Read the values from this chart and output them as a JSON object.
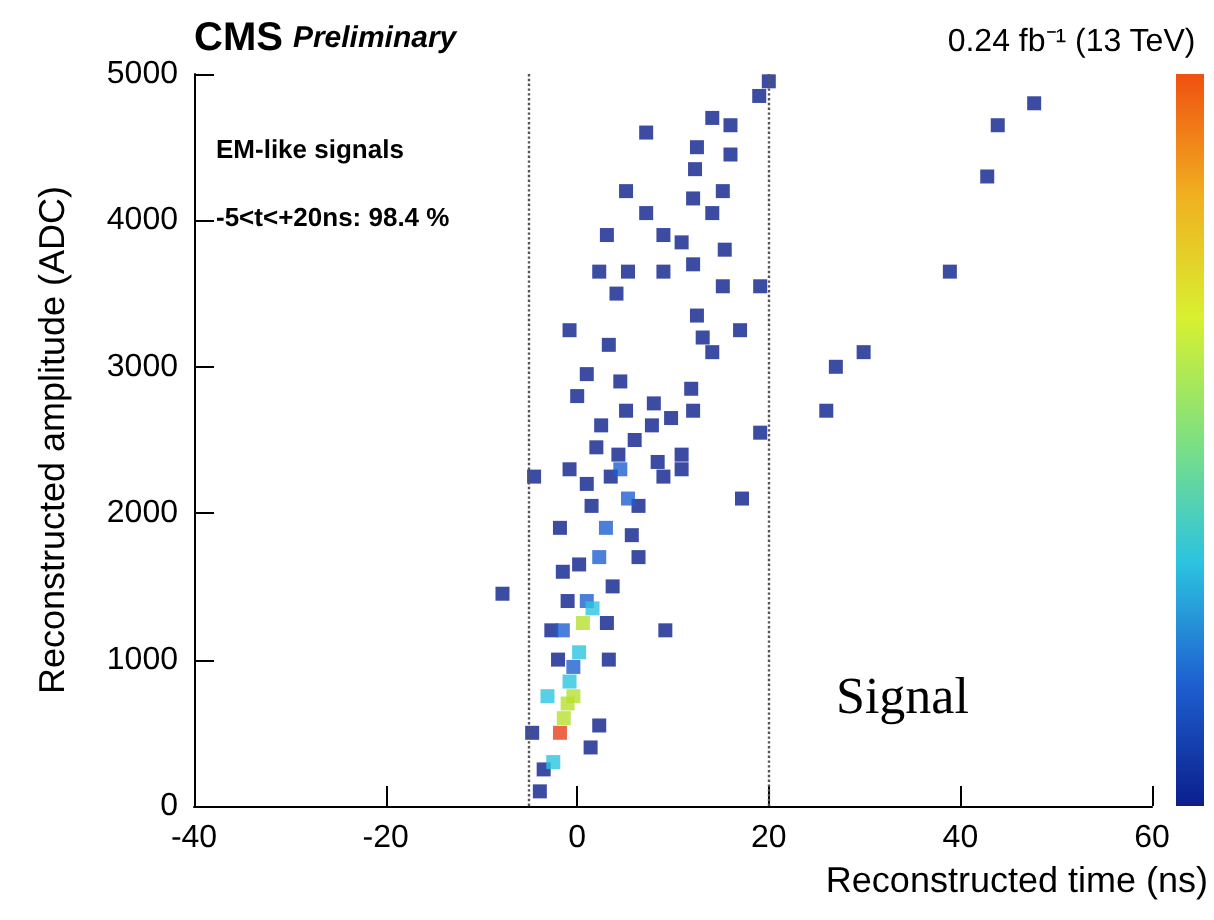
{
  "chart_data": {
    "type": "scatter",
    "title": "CMS Preliminary",
    "subtitle": "0.24 fb⁻¹ (13 TeV)",
    "xlabel": "Reconstructed time (ns)",
    "ylabel": "Reconstructed amplitude (ADC)",
    "annotations": [
      "EM-like signals",
      "-5<t<+20ns: 98.4 %",
      "Signal"
    ],
    "xlim": [
      -40,
      60
    ],
    "xticks": [
      -40,
      -20,
      0,
      20,
      40,
      60
    ],
    "ylim": [
      0,
      5000
    ],
    "yticks": [
      0,
      1000,
      2000,
      3000,
      4000,
      5000
    ],
    "grid": false,
    "marker": "square",
    "ref_lines": [
      {
        "axis": "x",
        "value": -5,
        "color": "#555555",
        "line_style": "dotted"
      },
      {
        "axis": "x",
        "value": 20,
        "color": "#555555",
        "line_style": "dotted"
      }
    ],
    "series": [
      {
        "color": "#0b1f8c",
        "x": [
          47.7,
          43.9,
          42.8,
          38.9,
          29.9,
          27.0,
          26.0,
          19.1,
          19.1,
          19.0,
          20.0,
          17.2,
          17.0,
          7.2,
          5.1,
          7.2,
          3.1,
          2.3,
          5.3,
          -0.8,
          4.1,
          3.3,
          1.0,
          14.1,
          16.0,
          12.5,
          16.0,
          12.3,
          15.2,
          12.1,
          14.1,
          10.9,
          9.0,
          15.4,
          12.1,
          9.0,
          15.2,
          12.5,
          13.1,
          14.1,
          11.9,
          12.1,
          10.9,
          10.9,
          9.0,
          9.8,
          -7.8,
          -4.5,
          9.2,
          -0.8,
          -2.7,
          -4.7,
          1.4,
          2.3,
          3.3,
          -3.9,
          -3.5,
          -1.8,
          0.2,
          3.1,
          5.7,
          6.4,
          4.3,
          7.8,
          5.1,
          8.4,
          1.0,
          6.4,
          -1.0,
          3.7,
          2.5,
          0.0,
          4.5,
          6.0,
          8.0,
          2.0,
          1.5,
          3.5,
          -2.0,
          -1.5
        ],
        "values": [
          4800,
          4650,
          4300,
          3650,
          3100,
          3000,
          2700,
          2550,
          3550,
          4850,
          4950,
          2100,
          3250,
          4600,
          4200,
          4050,
          3900,
          3650,
          3650,
          3250,
          3500,
          3150,
          2950,
          4700,
          4650,
          4500,
          4450,
          4350,
          4200,
          4150,
          4050,
          3850,
          3900,
          3800,
          3700,
          3650,
          3550,
          3350,
          3200,
          3100,
          2850,
          2700,
          2400,
          2300,
          2250,
          2650,
          1450,
          2250,
          1200,
          2300,
          1200,
          500,
          400,
          550,
          1000,
          100,
          250,
          1900,
          1650,
          1250,
          1850,
          2050,
          2400,
          2600,
          2700,
          2350,
          2200,
          1700,
          1400,
          1500,
          2600,
          2800,
          2900,
          2500,
          2750,
          2450,
          2050,
          2250,
          1000,
          1600
        ]
      },
      {
        "color": "#1e5fd0",
        "x": [
          5.3,
          2.3,
          1.0,
          -0.4,
          3.0,
          -1.5,
          4.5
        ],
        "values": [
          2100,
          1700,
          1400,
          950,
          1900,
          1200,
          2300
        ]
      },
      {
        "color": "#2cc4e0",
        "x": [
          1.6,
          0.2,
          -0.8,
          -2.5,
          -3.1
        ],
        "values": [
          1350,
          1050,
          850,
          300,
          750
        ]
      },
      {
        "color": "#b8e030",
        "x": [
          -1.0,
          -0.4,
          0.6,
          -1.4
        ],
        "values": [
          700,
          750,
          1250,
          600
        ]
      },
      {
        "color": "#e8401c",
        "x": [
          -1.8
        ],
        "values": [
          500
        ]
      }
    ]
  }
}
